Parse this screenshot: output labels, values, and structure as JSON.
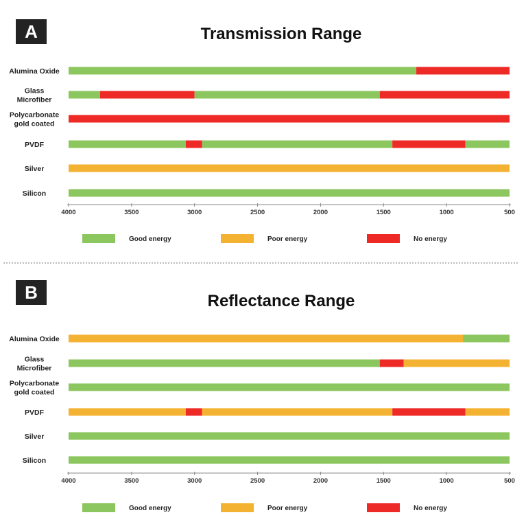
{
  "colors": {
    "good": "#8cc65e",
    "poor": "#f4b232",
    "none": "#ee2a27"
  },
  "chart_data": [
    {
      "type": "bar",
      "panel": "A",
      "title": "Transmission Range",
      "xlim": [
        4000,
        500
      ],
      "xticks": [
        4000,
        3500,
        3000,
        2500,
        2000,
        1500,
        1000,
        500
      ],
      "rows": [
        {
          "label": [
            "Alumina Oxide"
          ],
          "segments": [
            {
              "from": 4000,
              "to": 1240,
              "status": "good"
            },
            {
              "from": 1240,
              "to": 500,
              "status": "none"
            }
          ]
        },
        {
          "label": [
            "Glass",
            "Microfiber"
          ],
          "segments": [
            {
              "from": 4000,
              "to": 3750,
              "status": "good"
            },
            {
              "from": 3750,
              "to": 3000,
              "status": "none"
            },
            {
              "from": 3000,
              "to": 1530,
              "status": "good"
            },
            {
              "from": 1530,
              "to": 500,
              "status": "none"
            }
          ]
        },
        {
          "label": [
            "Polycarbonate",
            "gold coated"
          ],
          "segments": [
            {
              "from": 4000,
              "to": 500,
              "status": "none"
            }
          ]
        },
        {
          "label": [
            "PVDF"
          ],
          "segments": [
            {
              "from": 4000,
              "to": 3070,
              "status": "good"
            },
            {
              "from": 3070,
              "to": 2940,
              "status": "none"
            },
            {
              "from": 2940,
              "to": 1430,
              "status": "good"
            },
            {
              "from": 1430,
              "to": 850,
              "status": "none"
            },
            {
              "from": 850,
              "to": 500,
              "status": "good"
            }
          ]
        },
        {
          "label": [
            "Silver"
          ],
          "segments": [
            {
              "from": 4000,
              "to": 500,
              "status": "poor"
            }
          ]
        },
        {
          "label": [
            "Silicon"
          ],
          "segments": [
            {
              "from": 4000,
              "to": 500,
              "status": "good"
            }
          ]
        }
      ],
      "legend": [
        {
          "label": "Good energy",
          "status": "good"
        },
        {
          "label": "Poor energy",
          "status": "poor"
        },
        {
          "label": "No energy",
          "status": "none"
        }
      ]
    },
    {
      "type": "bar",
      "panel": "B",
      "title": "Reflectance Range",
      "xlim": [
        4000,
        500
      ],
      "xticks": [
        4000,
        3500,
        3000,
        2500,
        2000,
        1500,
        1000,
        500
      ],
      "rows": [
        {
          "label": [
            "Alumina Oxide"
          ],
          "segments": [
            {
              "from": 4000,
              "to": 870,
              "status": "poor"
            },
            {
              "from": 870,
              "to": 500,
              "status": "good"
            }
          ]
        },
        {
          "label": [
            "Glass",
            "Microfiber"
          ],
          "segments": [
            {
              "from": 4000,
              "to": 1530,
              "status": "good"
            },
            {
              "from": 1530,
              "to": 1340,
              "status": "none"
            },
            {
              "from": 1340,
              "to": 500,
              "status": "poor"
            }
          ]
        },
        {
          "label": [
            "Polycarbonate",
            "gold coated"
          ],
          "segments": [
            {
              "from": 4000,
              "to": 500,
              "status": "good"
            }
          ]
        },
        {
          "label": [
            "PVDF"
          ],
          "segments": [
            {
              "from": 4000,
              "to": 3070,
              "status": "poor"
            },
            {
              "from": 3070,
              "to": 2940,
              "status": "none"
            },
            {
              "from": 2940,
              "to": 1430,
              "status": "poor"
            },
            {
              "from": 1430,
              "to": 850,
              "status": "none"
            },
            {
              "from": 850,
              "to": 500,
              "status": "poor"
            }
          ]
        },
        {
          "label": [
            "Silver"
          ],
          "segments": [
            {
              "from": 4000,
              "to": 500,
              "status": "good"
            }
          ]
        },
        {
          "label": [
            "Silicon"
          ],
          "segments": [
            {
              "from": 4000,
              "to": 500,
              "status": "good"
            }
          ]
        }
      ],
      "legend": [
        {
          "label": "Good energy",
          "status": "good"
        },
        {
          "label": "Poor energy",
          "status": "poor"
        },
        {
          "label": "No energy",
          "status": "none"
        }
      ]
    }
  ]
}
